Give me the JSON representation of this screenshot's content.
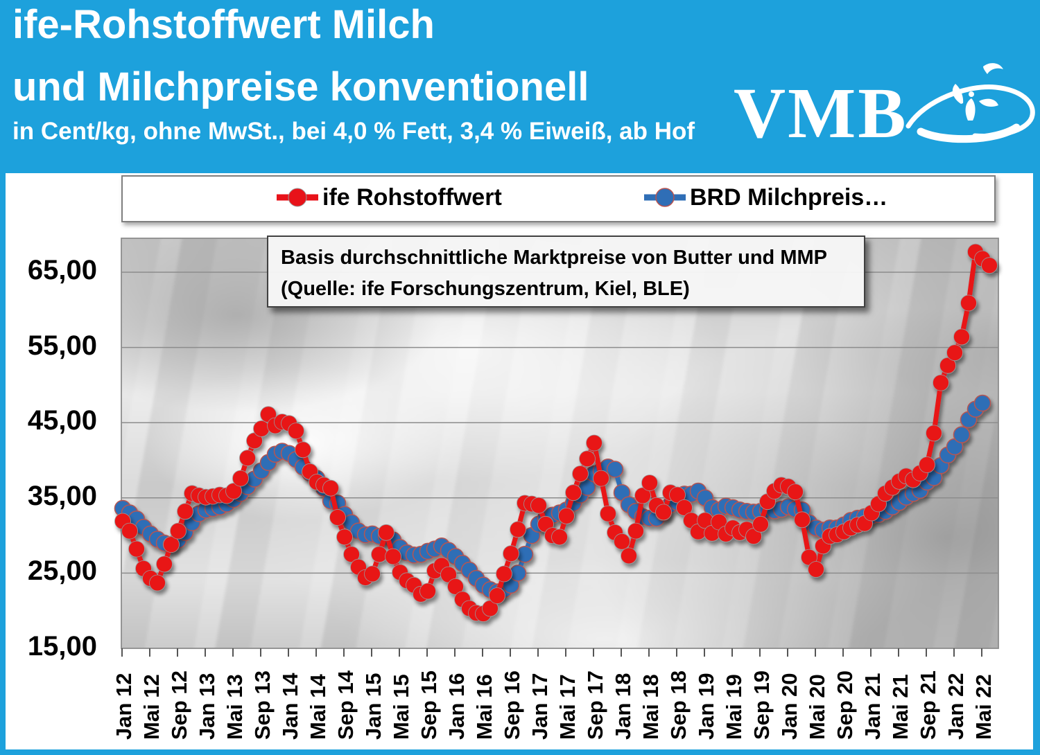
{
  "colors": {
    "brand_blue": "#1da1dc",
    "series_red": "#e81219",
    "series_blue": "#2f6eb6",
    "blue_marker_edge": "#b85450",
    "grid_gray": "#8c8c8c"
  },
  "header": {
    "title_line1": "ife-Rohstoffwert Milch",
    "title_line2": "und Milchpreise konventionell",
    "subtitle": "in Cent/kg, ohne MwSt., bei 4,0 % Fett, 3,4 % Eiweiß, ab Hof",
    "logo_text": "VMB"
  },
  "legend": {
    "entries": [
      {
        "label": "ife Rohstoffwert",
        "color": "#e81219"
      },
      {
        "label": "BRD Milchpreis…",
        "color": "#2f6eb6"
      }
    ]
  },
  "annotation": {
    "line1": "Basis durchschnittliche Marktpreise von Butter und MMP",
    "line2": "(Quelle: ife Forschungszentrum, Kiel, BLE)"
  },
  "chart_data": {
    "type": "line",
    "title": "ife-Rohstoffwert Milch und Milchpreise konventionell",
    "unit": "Cent/kg",
    "x_start_month": "Jan 2012",
    "x_interval": "monthly",
    "ylim": [
      15,
      69
    ],
    "grid": "horizontal",
    "legend_position": "top",
    "y_tick_values": [
      65,
      55,
      45,
      35,
      25,
      15
    ],
    "y_tick_labels": [
      "65,00",
      "55,00",
      "45,00",
      "35,00",
      "25,00",
      "15,00"
    ],
    "x_tick_labels": [
      "Jan 12",
      "Mai 12",
      "Sep 12",
      "Jan 13",
      "Mai 13",
      "Sep 13",
      "Jan 14",
      "Mai 14",
      "Sep 14",
      "Jan 15",
      "Mai 15",
      "Sep 15",
      "Jan 16",
      "Mai 16",
      "Sep 16",
      "Jan 17",
      "Mai 17",
      "Sep 17",
      "Jan 18",
      "Mai 18",
      "Sep 18",
      "Jan 19",
      "Mai 19",
      "Sep 19",
      "Jan 20",
      "Mai 20",
      "Sep 20",
      "Jan 21",
      "Mai 21",
      "Sep 21",
      "Jan 22",
      "Mai 22"
    ],
    "series": [
      {
        "name": "ife Rohstoffwert",
        "color": "#e81219",
        "marker": "circle",
        "values": [
          31.9,
          30.6,
          28.2,
          25.6,
          24.3,
          23.7,
          26.2,
          28.8,
          30.6,
          33.2,
          35.6,
          35.3,
          35.1,
          35.2,
          35.4,
          35.3,
          35.9,
          37.6,
          40.3,
          42.6,
          44.2,
          46.1,
          44.6,
          45.1,
          44.9,
          43.9,
          41.4,
          38.5,
          37.1,
          36.7,
          36.3,
          32.4,
          29.8,
          27.5,
          25.8,
          24.4,
          24.9,
          27.5,
          30.4,
          27.2,
          25.1,
          24.0,
          23.4,
          22.2,
          22.6,
          25.3,
          26.0,
          24.8,
          23.2,
          21.5,
          20.3,
          19.7,
          19.6,
          20.3,
          22.0,
          24.9,
          27.6,
          30.8,
          34.3,
          34.2,
          34.0,
          31.5,
          30.0,
          29.8,
          32.6,
          35.7,
          38.2,
          40.2,
          42.3,
          37.6,
          32.9,
          30.4,
          29.2,
          27.3,
          30.6,
          35.3,
          37.0,
          34.0,
          33.1,
          35.7,
          35.4,
          33.7,
          32.0,
          30.5,
          32.0,
          30.3,
          31.8,
          30.2,
          31.0,
          30.4,
          30.8,
          29.9,
          31.5,
          34.5,
          35.9,
          36.7,
          36.5,
          35.8,
          32.1,
          27.1,
          25.5,
          28.6,
          29.9,
          30.1,
          30.5,
          31.0,
          31.4,
          31.6,
          33.0,
          34.2,
          35.6,
          36.4,
          37.2,
          37.9,
          37.4,
          38.3,
          39.4,
          43.6,
          50.3,
          52.6,
          54.3,
          56.4,
          60.9,
          67.7,
          66.8,
          65.9
        ]
      },
      {
        "name": "BRD Milchpreis…",
        "color": "#2f6eb6",
        "marker": "circle",
        "values": [
          33.6,
          33.0,
          32.2,
          31.1,
          30.2,
          29.5,
          29.0,
          28.8,
          29.4,
          30.4,
          31.7,
          32.9,
          33.4,
          33.6,
          33.8,
          34.2,
          34.8,
          35.6,
          36.5,
          37.5,
          38.6,
          39.7,
          40.8,
          41.2,
          40.9,
          40.1,
          39.1,
          38.3,
          37.6,
          36.3,
          34.6,
          34.3,
          32.8,
          31.7,
          30.6,
          30.1,
          30.2,
          29.9,
          29.9,
          29.4,
          28.4,
          27.7,
          27.4,
          27.5,
          27.9,
          28.2,
          28.6,
          28.0,
          27.2,
          26.3,
          25.4,
          24.3,
          23.4,
          22.8,
          22.5,
          22.8,
          23.4,
          25.0,
          27.5,
          30.0,
          31.5,
          32.3,
          32.7,
          33.0,
          33.4,
          34.3,
          35.4,
          36.4,
          38.2,
          38.6,
          39.1,
          38.8,
          35.7,
          34.1,
          33.2,
          32.5,
          32.3,
          32.3,
          33.0,
          34.1,
          34.4,
          35.5,
          35.5,
          35.9,
          35.0,
          33.7,
          33.4,
          33.9,
          33.7,
          33.4,
          33.2,
          33.1,
          33.2,
          33.4,
          33.3,
          33.5,
          33.8,
          33.5,
          33.4,
          31.7,
          31.0,
          30.7,
          31.0,
          31.0,
          31.4,
          32.0,
          32.3,
          32.5,
          32.6,
          32.8,
          33.2,
          33.8,
          34.4,
          35.1,
          35.6,
          36.0,
          37.1,
          37.7,
          39.3,
          40.7,
          41.8,
          43.4,
          45.4,
          46.8,
          47.6
        ]
      }
    ]
  }
}
